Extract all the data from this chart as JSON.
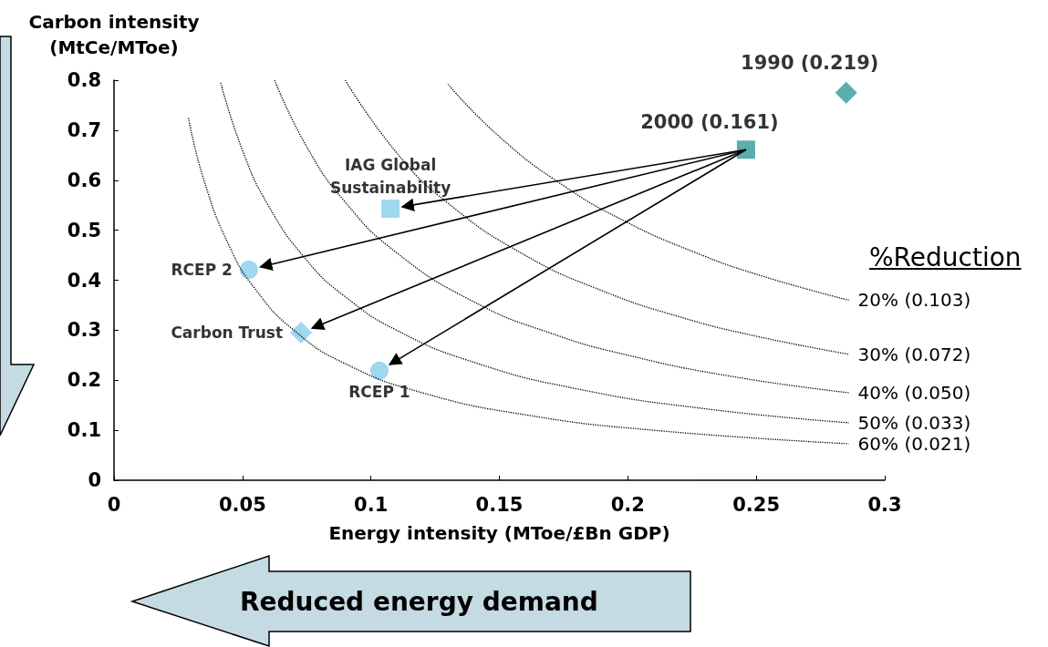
{
  "chart_data": {
    "type": "scatter",
    "xlabel": "Energy intensity (MToe/£Bn GDP)",
    "ylabel": "Carbon intensity\n(MtCe/MToe)",
    "xlim": [
      0,
      0.3
    ],
    "xticks": [
      0,
      0.05,
      0.1,
      0.15,
      0.2,
      0.25,
      0.3
    ],
    "ylim": [
      0,
      0.8
    ],
    "yticks": [
      0,
      0.1,
      0.2,
      0.3,
      0.4,
      0.5,
      0.6,
      0.7,
      0.8
    ],
    "grid": false,
    "legend": false,
    "annotations": [
      "%Reduction",
      "Reduced energy demand"
    ],
    "series": [
      {
        "name": "1990 (0.219)",
        "color": "#339999",
        "marker": "diamond",
        "x": [
          0.285
        ],
        "values": [
          0.775
        ]
      },
      {
        "name": "2000 (0.161)",
        "color": "#339999",
        "marker": "square",
        "x": [
          0.246
        ],
        "values": [
          0.661
        ]
      },
      {
        "name": "IAG Global\nSustainability",
        "color": "#87ceeb",
        "marker": "square",
        "x": [
          0.1076
        ],
        "values": [
          0.543
        ]
      },
      {
        "name": "RCEP 2",
        "color": "#87ceeb",
        "marker": "circle",
        "x": [
          0.0525
        ],
        "values": [
          0.421
        ]
      },
      {
        "name": "Carbon Trust",
        "color": "#87ceeb",
        "marker": "diamond",
        "x": [
          0.0728
        ],
        "values": [
          0.295
        ]
      },
      {
        "name": "RCEP 1",
        "color": "#87ceeb",
        "marker": "circle",
        "x": [
          0.1033
        ],
        "values": [
          0.219
        ]
      },
      {
        "name": "20% (0.103)",
        "type": "line",
        "line_style": "dotted",
        "marker": "none",
        "color": "#000000",
        "x": [
          0.13,
          0.15,
          0.175,
          0.2,
          0.225,
          0.25,
          0.286
        ],
        "values": [
          0.792,
          0.687,
          0.589,
          0.515,
          0.458,
          0.412,
          0.36
        ]
      },
      {
        "name": "30% (0.072)",
        "type": "line",
        "line_style": "dotted",
        "marker": "none",
        "color": "#000000",
        "x": [
          0.09,
          0.11,
          0.13,
          0.16,
          0.19,
          0.22,
          0.25,
          0.286
        ],
        "values": [
          0.8,
          0.655,
          0.554,
          0.45,
          0.379,
          0.327,
          0.288,
          0.252
        ]
      },
      {
        "name": "40% (0.050)",
        "type": "line",
        "line_style": "dotted",
        "marker": "none",
        "color": "#000000",
        "x": [
          0.0625,
          0.075,
          0.09,
          0.11,
          0.14,
          0.17,
          0.2,
          0.24,
          0.286
        ],
        "values": [
          0.8,
          0.667,
          0.556,
          0.455,
          0.357,
          0.294,
          0.25,
          0.208,
          0.175
        ]
      },
      {
        "name": "50% (0.033)",
        "type": "line",
        "line_style": "dotted",
        "marker": "none",
        "color": "#000000",
        "x": [
          0.0415,
          0.05,
          0.06,
          0.075,
          0.09,
          0.11,
          0.14,
          0.18,
          0.23,
          0.286
        ],
        "values": [
          0.795,
          0.66,
          0.55,
          0.44,
          0.367,
          0.3,
          0.236,
          0.183,
          0.143,
          0.115
        ]
      },
      {
        "name": "60% (0.021)",
        "type": "line",
        "line_style": "dotted",
        "marker": "none",
        "color": "#000000",
        "x": [
          0.029,
          0.035,
          0.045,
          0.055,
          0.07,
          0.09,
          0.12,
          0.16,
          0.21,
          0.286
        ],
        "values": [
          0.724,
          0.6,
          0.467,
          0.382,
          0.3,
          0.233,
          0.175,
          0.131,
          0.1,
          0.073
        ]
      }
    ]
  }
}
